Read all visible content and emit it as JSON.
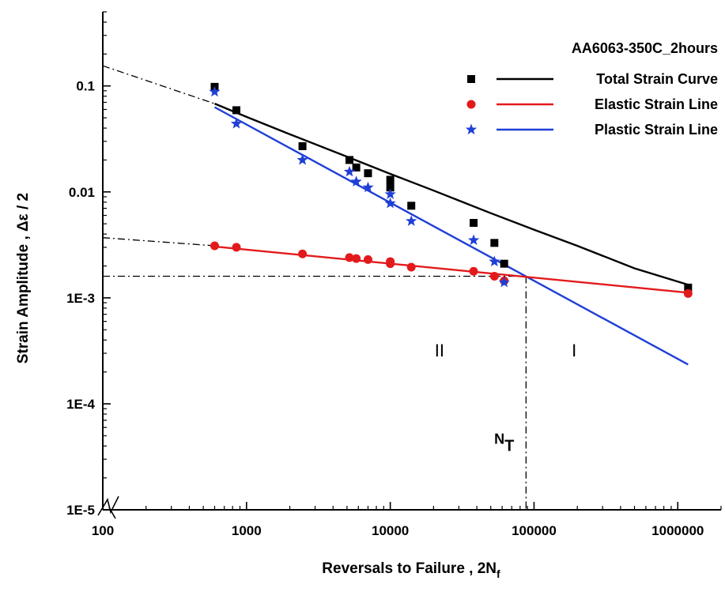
{
  "chart_data": {
    "type": "scatter",
    "title": "AA6063-350C_2hours",
    "xlabel": "Reversals to Failure , 2N",
    "xlabel_sub": "f",
    "ylabel": "Strain Amplitude , Δε / 2",
    "x_scale": "log",
    "y_scale": "log",
    "xlim": [
      100,
      2000000
    ],
    "ylim": [
      1e-05,
      0.5
    ],
    "x_ticks": [
      {
        "value": 100,
        "label": "100"
      },
      {
        "value": 1000,
        "label": "1000"
      },
      {
        "value": 10000,
        "label": "10000"
      },
      {
        "value": 100000,
        "label": "100000"
      },
      {
        "value": 1000000,
        "label": "1000000"
      }
    ],
    "y_ticks": [
      {
        "value": 0.1,
        "label": "0.1"
      },
      {
        "value": 0.01,
        "label": "0.01"
      },
      {
        "value": 0.001,
        "label": "1E-3"
      },
      {
        "value": 0.0001,
        "label": "1E-4"
      },
      {
        "value": 1e-05,
        "label": "1E-5"
      }
    ],
    "grid": false,
    "legend_position": "top-right",
    "series": [
      {
        "name": "Total Strain Curve",
        "color": "#000000",
        "marker": "square",
        "points": [
          [
            600,
            0.098
          ],
          [
            850,
            0.059
          ],
          [
            2450,
            0.027
          ],
          [
            5200,
            0.02
          ],
          [
            5800,
            0.017
          ],
          [
            7000,
            0.015
          ],
          [
            10000,
            0.013
          ],
          [
            10000,
            0.011
          ],
          [
            14000,
            0.0074
          ],
          [
            38000,
            0.0051
          ],
          [
            53000,
            0.0033
          ],
          [
            62000,
            0.0021
          ],
          [
            1180000,
            0.00125
          ]
        ],
        "line": [
          [
            600,
            0.068
          ],
          [
            1000,
            0.051
          ],
          [
            2000,
            0.035
          ],
          [
            5000,
            0.0215
          ],
          [
            10000,
            0.0148
          ],
          [
            20000,
            0.0103
          ],
          [
            50000,
            0.0063
          ],
          [
            100000,
            0.0044
          ],
          [
            200000,
            0.0031
          ],
          [
            500000,
            0.0019
          ],
          [
            1180000,
            0.00133
          ]
        ]
      },
      {
        "name": "Elastic Strain Line",
        "color": "#e31a1c",
        "marker": "circle",
        "points": [
          [
            600,
            0.0031
          ],
          [
            850,
            0.003
          ],
          [
            2450,
            0.0026
          ],
          [
            5200,
            0.0024
          ],
          [
            5800,
            0.00235
          ],
          [
            7000,
            0.0023
          ],
          [
            10000,
            0.0022
          ],
          [
            10000,
            0.0021
          ],
          [
            14000,
            0.00195
          ],
          [
            38000,
            0.00178
          ],
          [
            53000,
            0.0016
          ],
          [
            62000,
            0.00145
          ],
          [
            1180000,
            0.0011
          ]
        ],
        "line": [
          [
            600,
            0.00305
          ],
          [
            1180000,
            0.00112
          ]
        ]
      },
      {
        "name": "Plastic Strain Line",
        "color": "#1f3fd6",
        "marker": "star",
        "points": [
          [
            600,
            0.088
          ],
          [
            850,
            0.044
          ],
          [
            2450,
            0.02
          ],
          [
            5200,
            0.0155
          ],
          [
            5800,
            0.0125
          ],
          [
            7000,
            0.011
          ],
          [
            10000,
            0.0095
          ],
          [
            10000,
            0.0078
          ],
          [
            14000,
            0.0053
          ],
          [
            38000,
            0.0035
          ],
          [
            53000,
            0.0022
          ],
          [
            62000,
            0.0014
          ]
        ],
        "line": [
          [
            600,
            0.063
          ],
          [
            1180000,
            0.000235
          ]
        ]
      }
    ],
    "extrapolations": [
      {
        "from": [
          100,
          0.155
        ],
        "to": [
          600,
          0.068
        ]
      },
      {
        "from": [
          100,
          0.0037
        ],
        "to": [
          600,
          0.0031
        ]
      }
    ],
    "transition_point": {
      "x": 88000,
      "y": 0.0016
    },
    "annotations": [
      {
        "text": "II",
        "x": 22000,
        "y": 0.00028
      },
      {
        "text": "I",
        "x": 190000,
        "y": 0.00028
      },
      {
        "text": "N",
        "sub": "T",
        "x": 62000,
        "y": 4.2e-05
      }
    ]
  }
}
